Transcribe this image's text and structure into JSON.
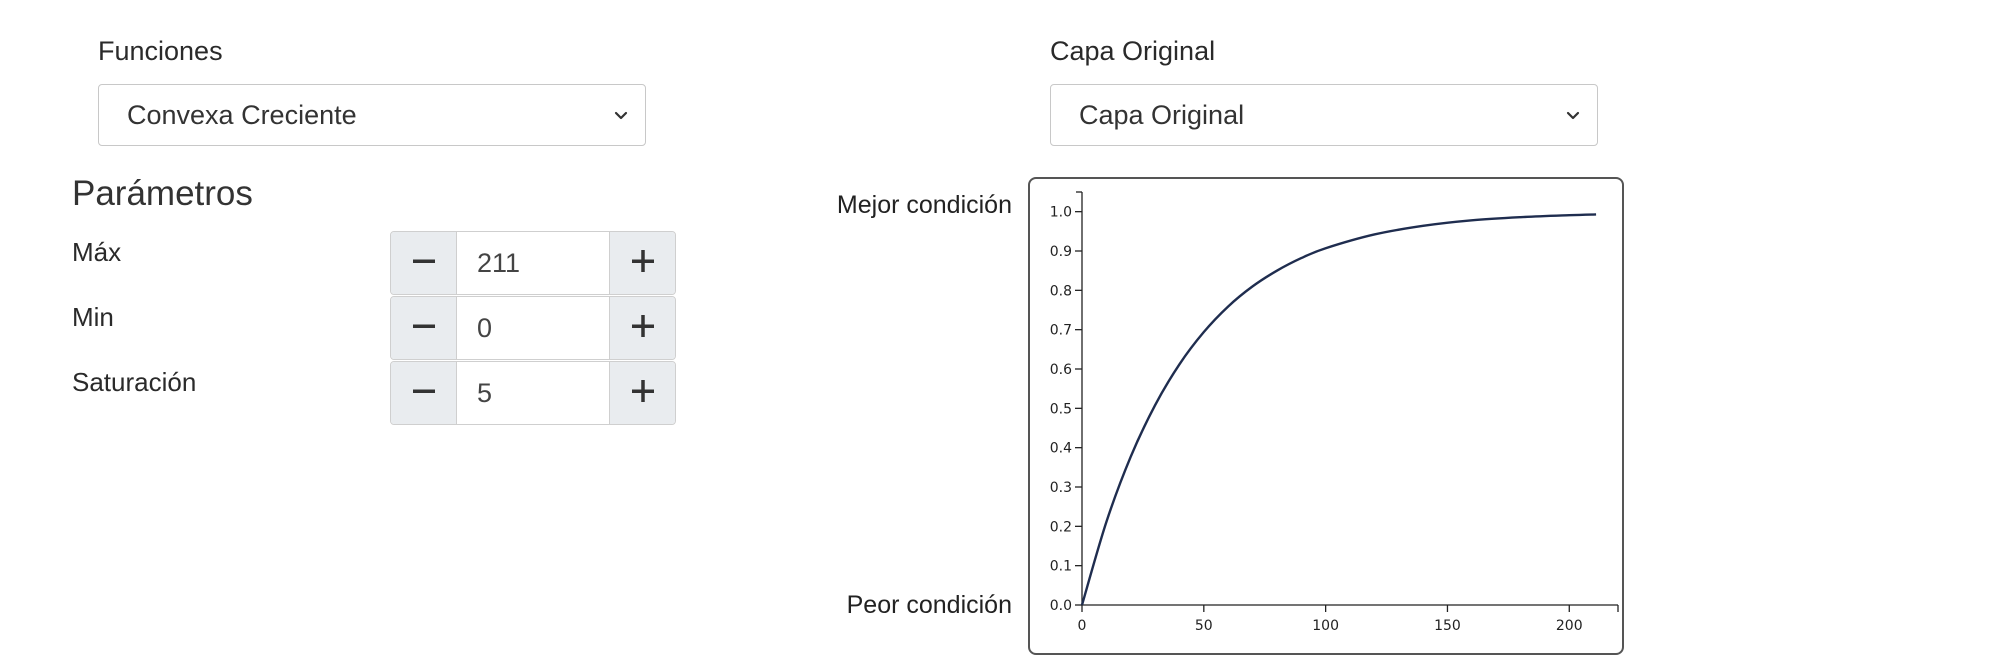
{
  "functions": {
    "label": "Funciones",
    "selected": "Convexa Creciente"
  },
  "layer": {
    "label": "Capa Original",
    "selected": "Capa Original"
  },
  "parameters": {
    "title": "Parámetros",
    "items": [
      {
        "label": "Máx",
        "value": "211",
        "minus": "−",
        "plus": "+"
      },
      {
        "label": "Min",
        "value": "0",
        "minus": "−",
        "plus": "+"
      },
      {
        "label": "Saturación",
        "value": "5",
        "minus": "−",
        "plus": "+"
      }
    ]
  },
  "chart_labels": {
    "best": "Mejor condición",
    "worst": "Peor condición"
  },
  "icons": {
    "select_arrow": "chevron-down-icon",
    "decrement": "minus-icon",
    "increment": "plus-icon"
  },
  "chart_data": {
    "type": "line",
    "x": [
      0,
      10,
      20,
      30,
      40,
      50,
      60,
      70,
      80,
      90,
      100,
      120,
      140,
      160,
      180,
      200,
      211
    ],
    "series": [
      {
        "values": [
          0,
          0.211,
          0.377,
          0.508,
          0.612,
          0.694,
          0.759,
          0.81,
          0.85,
          0.882,
          0.907,
          0.942,
          0.964,
          0.978,
          0.986,
          0.991,
          0.993
        ]
      }
    ],
    "xticks": [
      "0",
      "50",
      "100",
      "150",
      "200"
    ],
    "yticks": [
      "0.0",
      "0.1",
      "0.2",
      "0.3",
      "0.4",
      "0.5",
      "0.6",
      "0.7",
      "0.8",
      "0.9",
      "1.0"
    ],
    "xlim": [
      0,
      220
    ],
    "ylim": [
      0,
      1.05
    ],
    "line_color": "#1f2d4f"
  }
}
